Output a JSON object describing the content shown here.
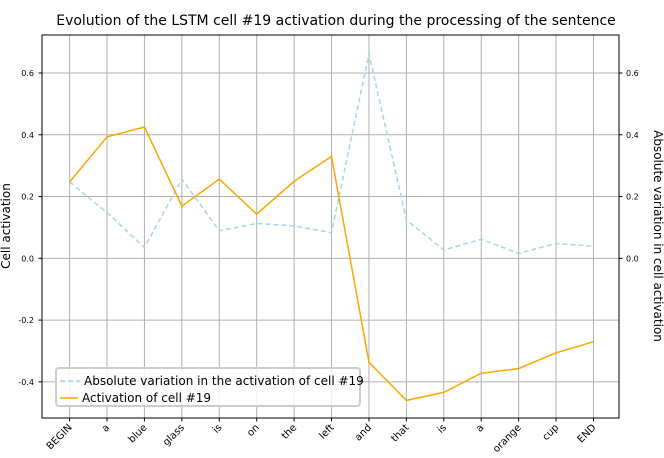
{
  "chart_data": {
    "type": "line",
    "title": "Evolution of the LSTM cell #19 activation during the processing of the sentence",
    "xlabel": "",
    "ylabel": "Cell activation",
    "ylabel_right": "Absolute variation in cell activation",
    "categories": [
      "BEGIN",
      "a",
      "blue",
      "glass",
      "is",
      "on",
      "the",
      "left",
      "and",
      "that",
      "is",
      "a",
      "orange",
      "cup",
      "END"
    ],
    "ylim": [
      -0.517,
      0.723
    ],
    "yticks": [
      "0.6",
      "0.4",
      "0.2",
      "0.0",
      "-0.2",
      "-0.4"
    ],
    "ytick_values": [
      0.6,
      0.4,
      0.2,
      0.0,
      -0.2,
      -0.4
    ],
    "yticks_right": [
      "0.6",
      "0.4",
      "0.2",
      "0.0"
    ],
    "ytick_right_values": [
      0.6,
      0.4,
      0.2,
      0.0
    ],
    "grid": true,
    "legend_placement": "lower-left",
    "series": [
      {
        "name": "Absolute variation in the activation of cell #19",
        "style": "dashed",
        "color": "#a1d9e6",
        "values": [
          0.247,
          0.148,
          0.035,
          0.256,
          0.089,
          0.113,
          0.105,
          0.083,
          0.662,
          0.124,
          0.027,
          0.062,
          0.016,
          0.048,
          0.039
        ]
      },
      {
        "name": "Activation of cell #19",
        "style": "solid",
        "color": "#ffa500",
        "values": [
          0.247,
          0.393,
          0.425,
          0.169,
          0.256,
          0.143,
          0.249,
          0.33,
          -0.337,
          -0.46,
          -0.434,
          -0.372,
          -0.357,
          -0.306,
          -0.27
        ]
      }
    ]
  }
}
